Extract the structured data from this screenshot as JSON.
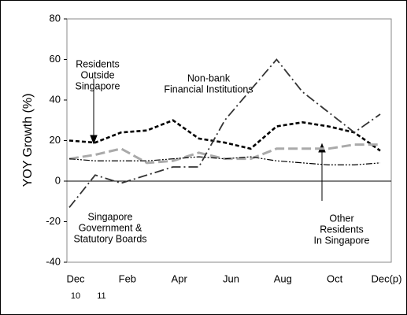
{
  "chart_data": {
    "type": "line",
    "y_label": "YOY Growth (%)",
    "categories": [
      "Dec",
      null,
      "Feb",
      null,
      "Apr",
      null,
      "Jun",
      null,
      "Aug",
      null,
      "Oct",
      null,
      "Dec(p)"
    ],
    "category_sublabels": [
      "10",
      "11",
      null,
      null,
      null,
      null,
      null,
      null,
      null,
      null,
      null,
      null,
      null
    ],
    "ylim": [
      -40,
      80
    ],
    "yticks": [
      -40,
      -20,
      0,
      20,
      40,
      60,
      80
    ],
    "series": [
      {
        "label_lines": [
          "Residents",
          "Outside",
          "Singapore"
        ],
        "color": "#000000",
        "dash": "5,3",
        "width": 2.6,
        "values": [
          20,
          19,
          24,
          25,
          30,
          21,
          19,
          16,
          27,
          29,
          27,
          24,
          15
        ]
      },
      {
        "label_lines": [
          "Non-bank",
          "Financial Institutions"
        ],
        "color": "#aaaaaa",
        "dash": "12,5",
        "width": 3,
        "values": [
          11,
          13,
          16,
          9,
          10,
          14,
          11,
          11,
          16,
          16,
          16,
          18,
          18
        ]
      },
      {
        "label_lines": [
          "Singapore",
          "Government &",
          "Statutory Boards"
        ],
        "color": "#333333",
        "dash": "12,4,2,4",
        "width": 1.8,
        "values": [
          -13,
          3,
          -1,
          3,
          7,
          7,
          30,
          45,
          60,
          44,
          34,
          24,
          33
        ]
      },
      {
        "label_lines": [
          "Other",
          "Residents",
          "In Singapore"
        ],
        "color": "#000000",
        "dash": "8,2,2,2,2,2",
        "width": 1.2,
        "values": [
          11,
          10,
          10,
          10,
          11,
          12,
          11,
          12,
          10,
          9,
          8,
          8,
          9
        ]
      }
    ]
  }
}
